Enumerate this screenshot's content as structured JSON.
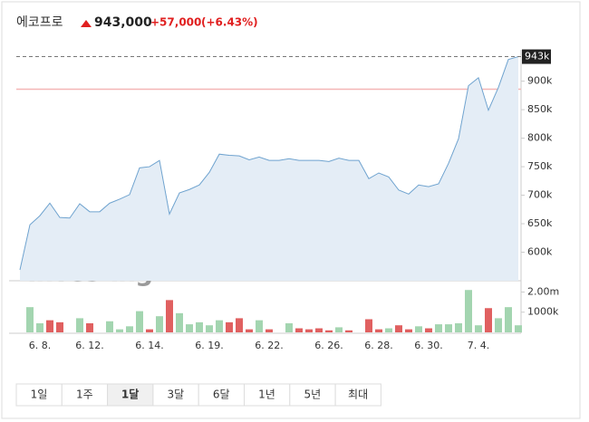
{
  "header": {
    "name": "에코프로",
    "price": "943,000",
    "change": "+57,000",
    "change_pct": "(+6.43%)"
  },
  "chart_data": {
    "type": "line",
    "color": "#6fa3cf",
    "fill": "#e4edf6",
    "categories": [
      null,
      null,
      "6. 8.",
      null,
      null,
      null,
      null,
      "6. 12.",
      null,
      null,
      null,
      null,
      null,
      "6. 14.",
      null,
      null,
      null,
      null,
      null,
      "6. 19.",
      null,
      null,
      null,
      null,
      null,
      "6. 22.",
      null,
      null,
      null,
      null,
      null,
      "6. 26.",
      null,
      null,
      null,
      null,
      "6. 28.",
      null,
      null,
      null,
      null,
      "6. 30.",
      null,
      null,
      null,
      null,
      "7. 4.",
      null,
      null,
      null,
      null
    ],
    "values": [
      569000,
      648000,
      664000,
      686000,
      661000,
      660000,
      685000,
      671000,
      671000,
      686000,
      693000,
      701000,
      748000,
      750000,
      761000,
      667000,
      704000,
      710000,
      718000,
      740000,
      772000,
      770000,
      769000,
      762000,
      767000,
      761000,
      761000,
      764000,
      761000,
      761000,
      761000,
      759000,
      765000,
      761000,
      761000,
      729000,
      739000,
      732000,
      709000,
      702000,
      718000,
      715000,
      720000,
      756000,
      799000,
      892000,
      906000,
      849000,
      889000,
      938000,
      943000
    ],
    "ylim": [
      550000,
      955000
    ],
    "yticks": [
      {
        "value": 600000,
        "label": "600k"
      },
      {
        "value": 650000,
        "label": "650k"
      },
      {
        "value": 700000,
        "label": "700k"
      },
      {
        "value": 750000,
        "label": "750k"
      },
      {
        "value": 800000,
        "label": "800k"
      },
      {
        "value": 850000,
        "label": "850k"
      },
      {
        "value": 900000,
        "label": "900k"
      }
    ],
    "last_price": {
      "value": 943000,
      "label": "943k"
    },
    "prev_close": 886000,
    "prev_close_color": "#f4b6b6",
    "watermark": "Investing",
    "watermark_suffix": ".com",
    "volume": {
      "ylim": [
        0,
        2200000
      ],
      "yticks": [
        {
          "value": 1000000,
          "label": "1000k"
        },
        {
          "value": 2000000,
          "label": "2.00m"
        }
      ],
      "values": [
        null,
        1250000,
        450000,
        600000,
        500000,
        null,
        700000,
        450000,
        null,
        550000,
        150000,
        300000,
        1050000,
        150000,
        800000,
        1600000,
        950000,
        400000,
        500000,
        350000,
        600000,
        500000,
        700000,
        150000,
        600000,
        150000,
        null,
        450000,
        200000,
        150000,
        200000,
        100000,
        250000,
        100000,
        null,
        650000,
        150000,
        200000,
        350000,
        150000,
        300000,
        200000,
        400000,
        400000,
        450000,
        2100000,
        350000,
        1200000,
        700000,
        1250000,
        350000
      ],
      "colors": [
        null,
        "#a3d5b0",
        "#a3d5b0",
        "#e06060",
        "#e06060",
        null,
        "#a3d5b0",
        "#e06060",
        null,
        "#a3d5b0",
        "#a3d5b0",
        "#a3d5b0",
        "#a3d5b0",
        "#e06060",
        "#a3d5b0",
        "#e06060",
        "#a3d5b0",
        "#a3d5b0",
        "#a3d5b0",
        "#a3d5b0",
        "#a3d5b0",
        "#e06060",
        "#e06060",
        "#e06060",
        "#a3d5b0",
        "#e06060",
        null,
        "#a3d5b0",
        "#e06060",
        "#e06060",
        "#e06060",
        "#e06060",
        "#a3d5b0",
        "#e06060",
        null,
        "#e06060",
        "#e06060",
        "#a3d5b0",
        "#e06060",
        "#e06060",
        "#a3d5b0",
        "#e06060",
        "#a3d5b0",
        "#a3d5b0",
        "#a3d5b0",
        "#a3d5b0",
        "#a3d5b0",
        "#e06060",
        "#a3d5b0",
        "#a3d5b0",
        "#a3d5b0"
      ]
    }
  },
  "periods": {
    "buttons": [
      "1일",
      "1주",
      "1달",
      "3달",
      "6달",
      "1년",
      "5년",
      "최대"
    ],
    "selected": 2
  }
}
